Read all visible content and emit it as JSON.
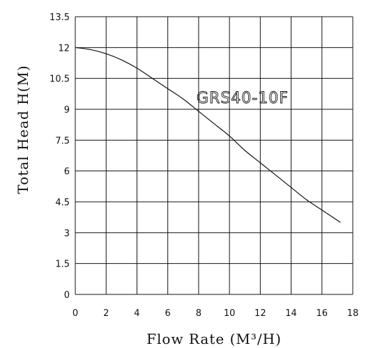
{
  "chart_data": {
    "type": "line",
    "xlabel": "Flow Rate (M³/H)",
    "ylabel": "Total Head H(M)",
    "xlim": [
      0,
      18
    ],
    "ylim": [
      0,
      13.5
    ],
    "x_ticks": [
      "0",
      "2",
      "4",
      "6",
      "8",
      "10",
      "12",
      "14",
      "16",
      "18"
    ],
    "y_ticks": [
      "0",
      "1.5",
      "3",
      "4.5",
      "6",
      "7.5",
      "9",
      "10.5",
      "12",
      "13.5"
    ],
    "grid": true,
    "series": [
      {
        "name": "GRS40-10F",
        "x": [
          0,
          1,
          2,
          3,
          4,
          5,
          6,
          7,
          8,
          9,
          10,
          11,
          12,
          13,
          14,
          15,
          16,
          17.2
        ],
        "y": [
          12.0,
          11.9,
          11.7,
          11.4,
          11.0,
          10.5,
          10.0,
          9.5,
          8.9,
          8.3,
          7.7,
          7.0,
          6.4,
          5.8,
          5.2,
          4.6,
          4.1,
          3.5
        ]
      }
    ]
  }
}
